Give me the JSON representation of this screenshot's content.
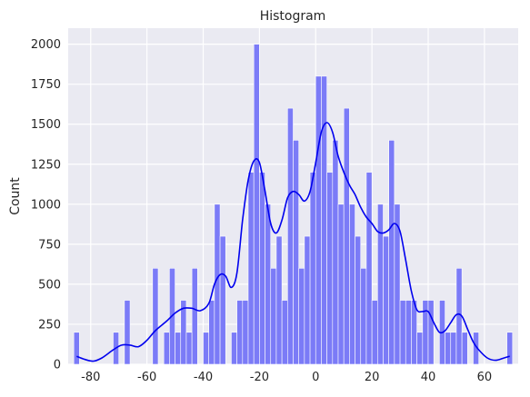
{
  "chart_data": {
    "type": "bar",
    "title": "Histogram",
    "xlabel": "",
    "ylabel": "Count",
    "xlim": [
      -88,
      72
    ],
    "ylim": [
      0,
      2100
    ],
    "xticks": [
      -80,
      -60,
      -40,
      -20,
      0,
      20,
      40,
      60
    ],
    "yticks": [
      0,
      250,
      500,
      750,
      1000,
      1250,
      1500,
      1750,
      2000
    ],
    "grid": true,
    "bin_width": 2,
    "colors": {
      "bars": "#7b7bf7",
      "bar_edge": "#ffffff",
      "kde": "#0000ee",
      "background": "#eaeaf2",
      "grid": "#ffffff"
    },
    "bins": [
      {
        "x": -85,
        "count": 200
      },
      {
        "x": -71,
        "count": 200
      },
      {
        "x": -67,
        "count": 400
      },
      {
        "x": -57,
        "count": 600
      },
      {
        "x": -53,
        "count": 200
      },
      {
        "x": -51,
        "count": 600
      },
      {
        "x": -49,
        "count": 200
      },
      {
        "x": -47,
        "count": 400
      },
      {
        "x": -45,
        "count": 200
      },
      {
        "x": -43,
        "count": 600
      },
      {
        "x": -39,
        "count": 200
      },
      {
        "x": -37,
        "count": 400
      },
      {
        "x": -35,
        "count": 1000
      },
      {
        "x": -33,
        "count": 800
      },
      {
        "x": -29,
        "count": 200
      },
      {
        "x": -27,
        "count": 400
      },
      {
        "x": -25,
        "count": 400
      },
      {
        "x": -23,
        "count": 1200
      },
      {
        "x": -21,
        "count": 2000
      },
      {
        "x": -19,
        "count": 1200
      },
      {
        "x": -17,
        "count": 1000
      },
      {
        "x": -15,
        "count": 600
      },
      {
        "x": -13,
        "count": 800
      },
      {
        "x": -11,
        "count": 400
      },
      {
        "x": -9,
        "count": 1600
      },
      {
        "x": -7,
        "count": 1400
      },
      {
        "x": -5,
        "count": 600
      },
      {
        "x": -3,
        "count": 800
      },
      {
        "x": -1,
        "count": 1200
      },
      {
        "x": 1,
        "count": 1800
      },
      {
        "x": 3,
        "count": 1800
      },
      {
        "x": 5,
        "count": 1200
      },
      {
        "x": 7,
        "count": 1400
      },
      {
        "x": 9,
        "count": 1000
      },
      {
        "x": 11,
        "count": 1600
      },
      {
        "x": 13,
        "count": 1000
      },
      {
        "x": 15,
        "count": 800
      },
      {
        "x": 17,
        "count": 600
      },
      {
        "x": 19,
        "count": 1200
      },
      {
        "x": 21,
        "count": 400
      },
      {
        "x": 23,
        "count": 1000
      },
      {
        "x": 25,
        "count": 800
      },
      {
        "x": 27,
        "count": 1400
      },
      {
        "x": 29,
        "count": 1000
      },
      {
        "x": 31,
        "count": 400
      },
      {
        "x": 33,
        "count": 400
      },
      {
        "x": 35,
        "count": 400
      },
      {
        "x": 37,
        "count": 200
      },
      {
        "x": 39,
        "count": 400
      },
      {
        "x": 41,
        "count": 400
      },
      {
        "x": 45,
        "count": 400
      },
      {
        "x": 47,
        "count": 200
      },
      {
        "x": 49,
        "count": 200
      },
      {
        "x": 51,
        "count": 600
      },
      {
        "x": 53,
        "count": 200
      },
      {
        "x": 57,
        "count": 200
      },
      {
        "x": 69,
        "count": 200
      }
    ],
    "kde": [
      {
        "x": -85,
        "y": 50
      },
      {
        "x": -82,
        "y": 30
      },
      {
        "x": -79,
        "y": 20
      },
      {
        "x": -76,
        "y": 40
      },
      {
        "x": -72,
        "y": 90
      },
      {
        "x": -69,
        "y": 120
      },
      {
        "x": -66,
        "y": 120
      },
      {
        "x": -63,
        "y": 110
      },
      {
        "x": -60,
        "y": 150
      },
      {
        "x": -57,
        "y": 210
      },
      {
        "x": -53,
        "y": 270
      },
      {
        "x": -50,
        "y": 320
      },
      {
        "x": -47,
        "y": 350
      },
      {
        "x": -44,
        "y": 350
      },
      {
        "x": -41,
        "y": 335
      },
      {
        "x": -38,
        "y": 380
      },
      {
        "x": -36,
        "y": 500
      },
      {
        "x": -34,
        "y": 560
      },
      {
        "x": -32,
        "y": 550
      },
      {
        "x": -30,
        "y": 480
      },
      {
        "x": -28,
        "y": 570
      },
      {
        "x": -26,
        "y": 900
      },
      {
        "x": -24,
        "y": 1150
      },
      {
        "x": -22,
        "y": 1270
      },
      {
        "x": -20,
        "y": 1260
      },
      {
        "x": -18,
        "y": 1080
      },
      {
        "x": -16,
        "y": 880
      },
      {
        "x": -14,
        "y": 820
      },
      {
        "x": -12,
        "y": 900
      },
      {
        "x": -10,
        "y": 1040
      },
      {
        "x": -8,
        "y": 1080
      },
      {
        "x": -6,
        "y": 1060
      },
      {
        "x": -4,
        "y": 1020
      },
      {
        "x": -2,
        "y": 1080
      },
      {
        "x": 0,
        "y": 1260
      },
      {
        "x": 2,
        "y": 1450
      },
      {
        "x": 4,
        "y": 1510
      },
      {
        "x": 6,
        "y": 1450
      },
      {
        "x": 8,
        "y": 1300
      },
      {
        "x": 10,
        "y": 1200
      },
      {
        "x": 12,
        "y": 1120
      },
      {
        "x": 14,
        "y": 1060
      },
      {
        "x": 16,
        "y": 980
      },
      {
        "x": 18,
        "y": 920
      },
      {
        "x": 20,
        "y": 880
      },
      {
        "x": 22,
        "y": 830
      },
      {
        "x": 24,
        "y": 820
      },
      {
        "x": 26,
        "y": 840
      },
      {
        "x": 28,
        "y": 880
      },
      {
        "x": 30,
        "y": 830
      },
      {
        "x": 32,
        "y": 650
      },
      {
        "x": 34,
        "y": 460
      },
      {
        "x": 36,
        "y": 340
      },
      {
        "x": 38,
        "y": 330
      },
      {
        "x": 40,
        "y": 330
      },
      {
        "x": 42,
        "y": 260
      },
      {
        "x": 44,
        "y": 200
      },
      {
        "x": 46,
        "y": 210
      },
      {
        "x": 48,
        "y": 260
      },
      {
        "x": 50,
        "y": 310
      },
      {
        "x": 52,
        "y": 300
      },
      {
        "x": 54,
        "y": 220
      },
      {
        "x": 56,
        "y": 140
      },
      {
        "x": 58,
        "y": 90
      },
      {
        "x": 61,
        "y": 40
      },
      {
        "x": 64,
        "y": 25
      },
      {
        "x": 67,
        "y": 40
      },
      {
        "x": 69,
        "y": 50
      }
    ]
  }
}
